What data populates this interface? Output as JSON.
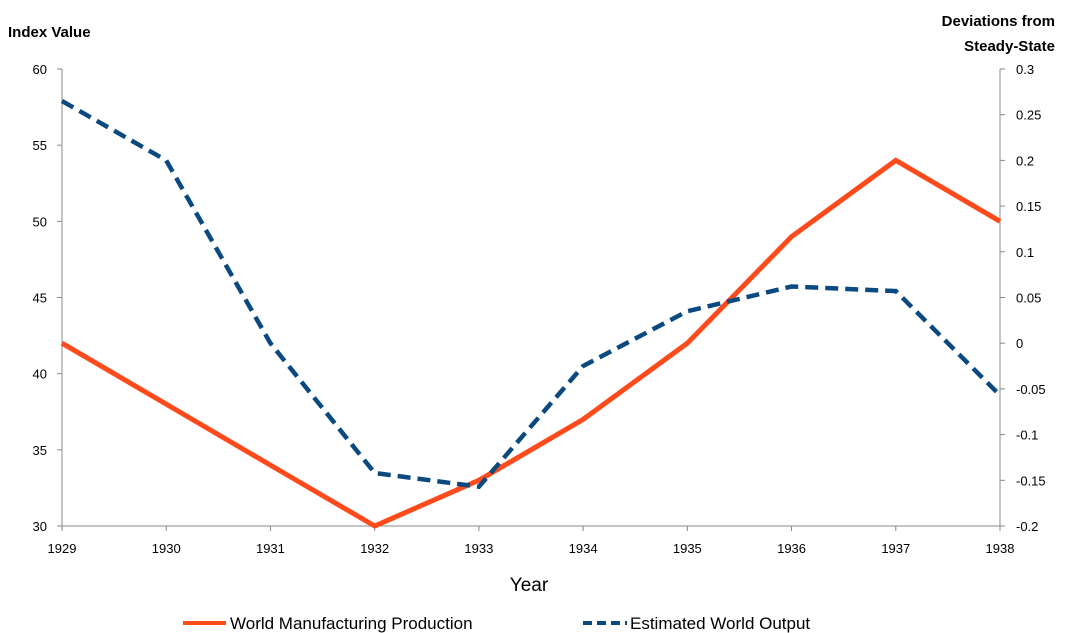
{
  "chart_data": {
    "type": "line",
    "x": [
      1929,
      1930,
      1931,
      1932,
      1933,
      1934,
      1935,
      1936,
      1937,
      1938
    ],
    "x_tick_labels": [
      "1929",
      "1930",
      "1931",
      "1932",
      "1933",
      "1934",
      "1935",
      "1936",
      "1937",
      "1938"
    ],
    "xlabel": "Year",
    "ylabel_left": "Index Value",
    "ylabel_right_lines": [
      "Deviations from",
      "Steady-State"
    ],
    "ylim_left": [
      30,
      60
    ],
    "ylim_right": [
      -0.2,
      0.3
    ],
    "y_left_ticks": [
      "30",
      "35",
      "40",
      "45",
      "50",
      "55",
      "60"
    ],
    "y_right_ticks": [
      "-0.2",
      "-0.15",
      "-0.1",
      "-0.05",
      "0",
      "0.05",
      "0.1",
      "0.15",
      "0.2",
      "0.25",
      "0.3"
    ],
    "grid": false,
    "legend_position": "bottom",
    "series": [
      {
        "name": "World Manufacturing Production",
        "axis": "left",
        "style": "solid",
        "color": "#FF4A1C",
        "values": [
          42,
          38,
          34,
          30,
          33,
          37,
          42,
          49,
          54,
          50
        ]
      },
      {
        "name": "Estimated World Output",
        "axis": "right",
        "style": "dashed",
        "color": "#0B4A80",
        "values": [
          0.265,
          0.2,
          0.0,
          -0.142,
          -0.157,
          -0.025,
          0.035,
          0.062,
          0.057,
          -0.057
        ]
      }
    ]
  }
}
